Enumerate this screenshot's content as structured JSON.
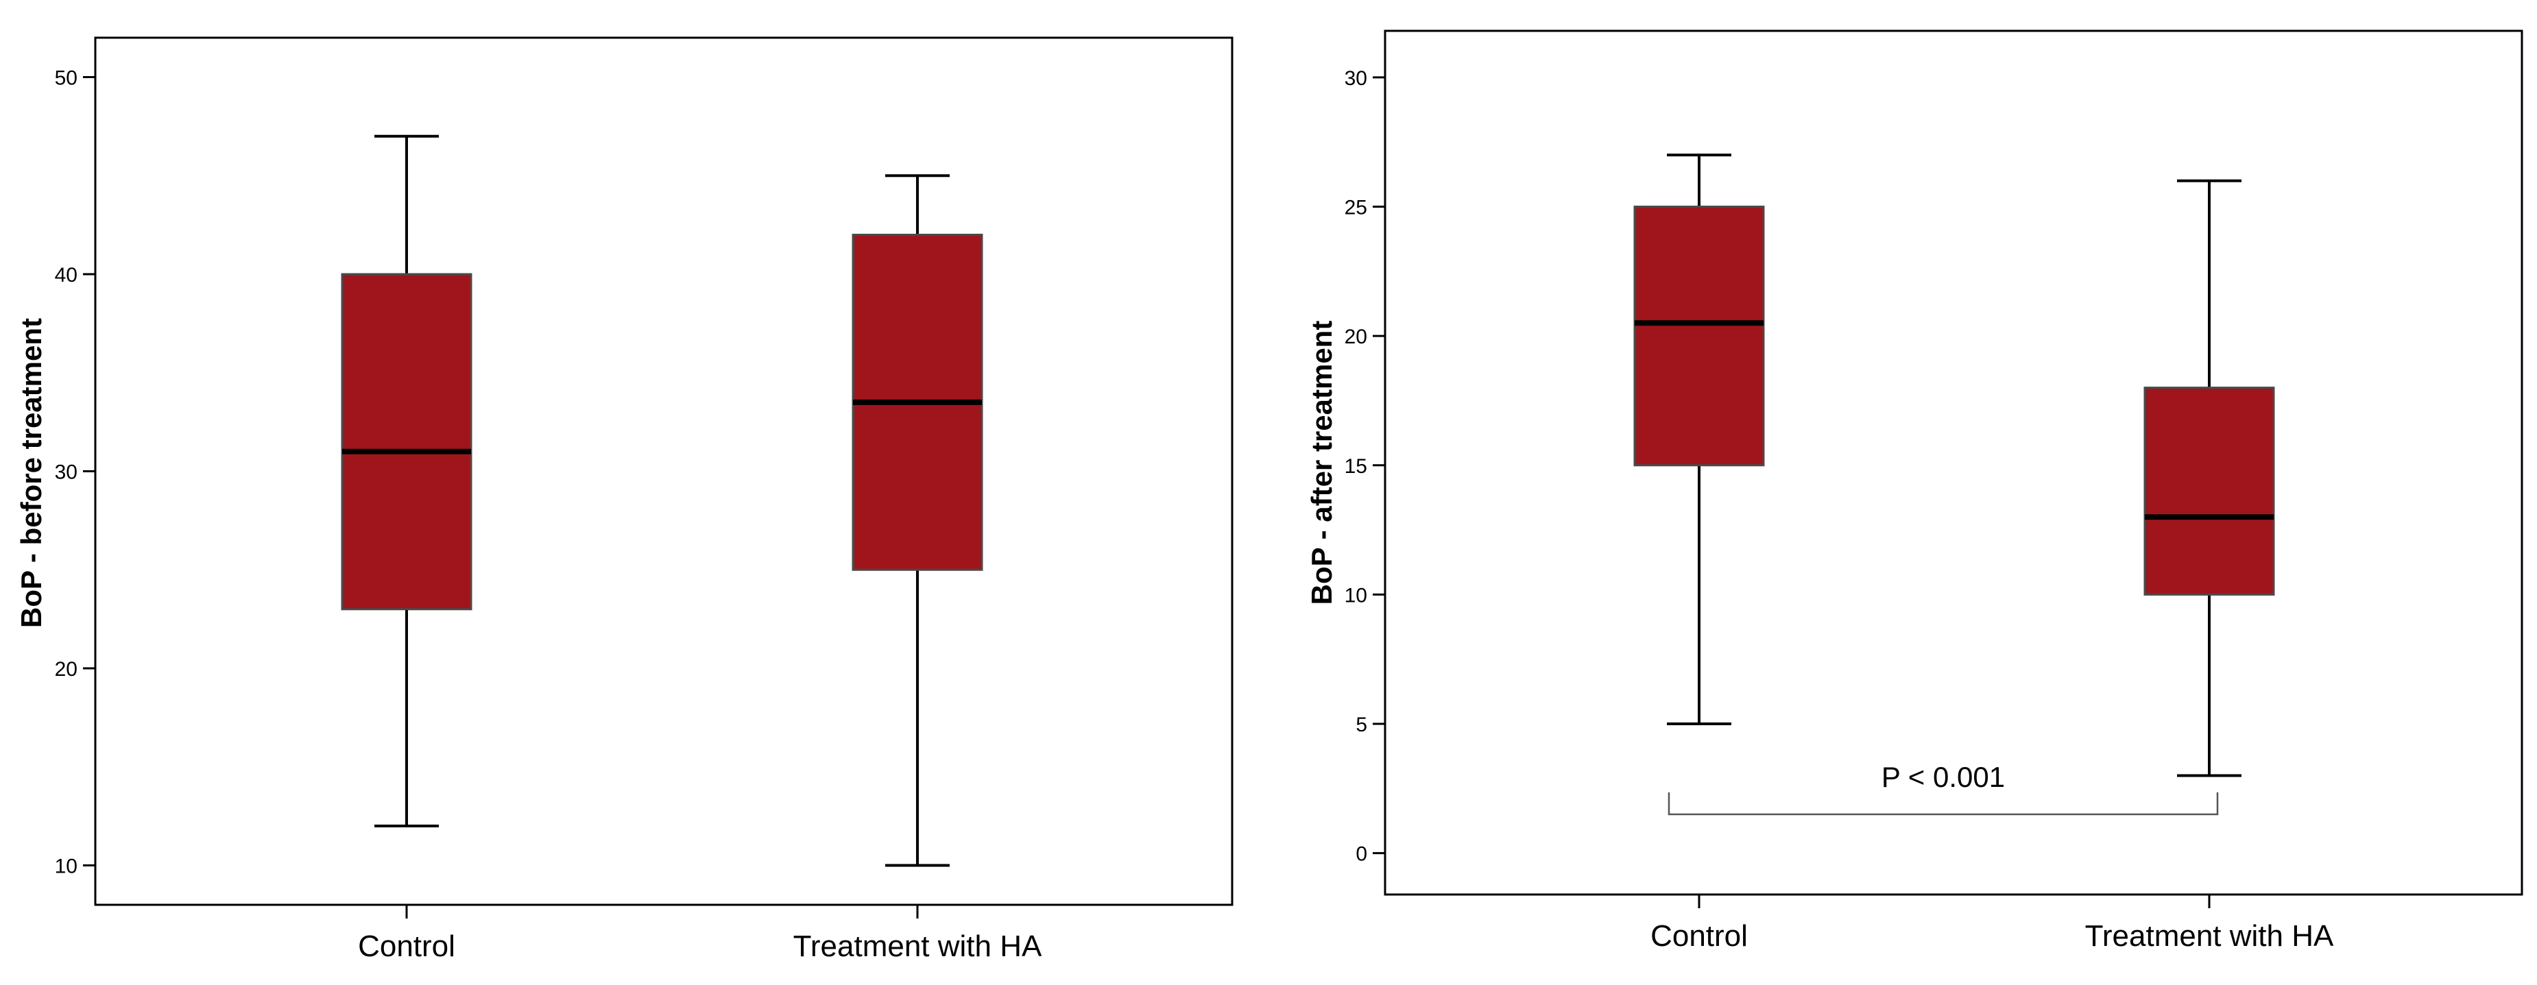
{
  "chart_data": [
    {
      "type": "boxplot",
      "title": "",
      "xlabel": "",
      "ylabel": "BoP - before treatment",
      "categories": [
        "Control",
        "Treatment with HA"
      ],
      "boxes": [
        {
          "min": 12,
          "q1": 23,
          "median": 31,
          "q3": 40,
          "max": 47
        },
        {
          "min": 10,
          "q1": 25,
          "median": 33.5,
          "q3": 42,
          "max": 45
        }
      ],
      "ylim": [
        8,
        52
      ],
      "yticks": [
        10,
        20,
        30,
        40,
        50
      ],
      "box_color": "#a0151c",
      "annotation": null
    },
    {
      "type": "boxplot",
      "title": "",
      "xlabel": "",
      "ylabel": "BoP - after treatment",
      "categories": [
        "Control",
        "Treatment with HA"
      ],
      "boxes": [
        {
          "min": 5,
          "q1": 15,
          "median": 20.5,
          "q3": 25,
          "max": 27
        },
        {
          "min": 3,
          "q1": 10,
          "median": 13,
          "q3": 18,
          "max": 26
        }
      ],
      "ylim": [
        -1.6,
        31.8
      ],
      "yticks": [
        0,
        5,
        10,
        15,
        20,
        25,
        30
      ],
      "box_color": "#a0151c",
      "annotation": {
        "text": "P < 0.001",
        "bracket_y": 1.5
      }
    }
  ]
}
